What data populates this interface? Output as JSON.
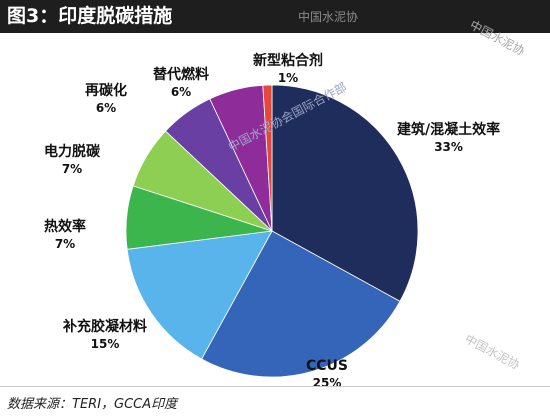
{
  "header": {
    "title": "图3：印度脱碳措施"
  },
  "watermark": "中国水泥协会国际合作部",
  "watermark_short": "中国水泥协",
  "source": "数据来源：TERI，GCCA印度",
  "chart_data": {
    "type": "pie",
    "title": "图3：印度脱碳措施",
    "slices": [
      {
        "label": "建筑/混凝土效率",
        "value": 33,
        "value_label": "33%",
        "color": "#1f2d5c"
      },
      {
        "label": "CCUS",
        "value": 25,
        "value_label": "25%",
        "color": "#3565b8"
      },
      {
        "label": "补充胶凝材料",
        "value": 15,
        "value_label": "15%",
        "color": "#58b4ea"
      },
      {
        "label": "热效率",
        "value": 7,
        "value_label": "7%",
        "color": "#3cb54d"
      },
      {
        "label": "电力脱碳",
        "value": 7,
        "value_label": "7%",
        "color": "#8dcf53"
      },
      {
        "label": "再碳化",
        "value": 6,
        "value_label": "6%",
        "color": "#6a3fa3"
      },
      {
        "label": "替代燃料",
        "value": 6,
        "value_label": "6%",
        "color": "#8e2c99"
      },
      {
        "label": "新型粘合剂",
        "value": 1,
        "value_label": "1%",
        "color": "#e2493a"
      }
    ]
  }
}
